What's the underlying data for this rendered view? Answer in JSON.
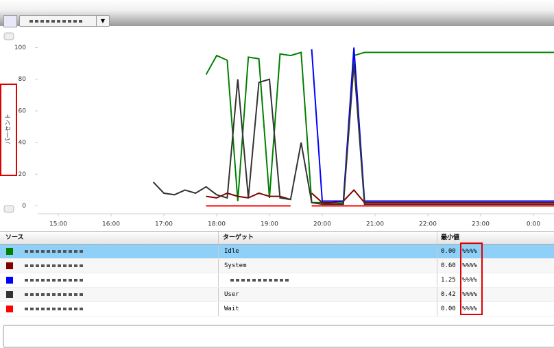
{
  "chart_data": {
    "type": "line",
    "y_label": "パーセント",
    "x": [
      16.6,
      16.8,
      17.0,
      17.2,
      17.4,
      17.6,
      17.8,
      18.0,
      18.2,
      18.4,
      18.6,
      18.8,
      19.0,
      19.2,
      19.4,
      19.6,
      19.8,
      20.0,
      20.2,
      20.4,
      20.6,
      20.8,
      21.0,
      21.2,
      21.4,
      21.6,
      21.8,
      22.0,
      22.2,
      22.4,
      22.6,
      22.8,
      23.0,
      23.2,
      23.4,
      23.6,
      23.8,
      24.0,
      24.2,
      24.4
    ],
    "xlim": [
      14.61,
      24.39
    ],
    "xticks": [
      {
        "value": 15,
        "label": "15:00"
      },
      {
        "value": 16,
        "label": "16:00"
      },
      {
        "value": 17,
        "label": "17:00"
      },
      {
        "value": 18,
        "label": "18:00"
      },
      {
        "value": 19,
        "label": "19:00"
      },
      {
        "value": 20,
        "label": "20:00"
      },
      {
        "value": 21,
        "label": "21:00"
      },
      {
        "value": 22,
        "label": "22:00"
      },
      {
        "value": 23,
        "label": "23:00"
      },
      {
        "value": 24,
        "label": "0:00"
      }
    ],
    "ylim": [
      -5,
      105
    ],
    "yticks": [
      0,
      20,
      40,
      60,
      80,
      100
    ],
    "grid": false,
    "series": [
      {
        "name": "Idle",
        "color": "#008000",
        "values": [
          null,
          null,
          null,
          null,
          null,
          null,
          83,
          95,
          92,
          3,
          94,
          93,
          5,
          96,
          95,
          97,
          2,
          2,
          1,
          2,
          95,
          97,
          97,
          97,
          97,
          97,
          97,
          97,
          97,
          97,
          97,
          97,
          97,
          97,
          97,
          97,
          97,
          97,
          97,
          97
        ]
      },
      {
        "name": "System",
        "color": "#800000",
        "values": [
          null,
          null,
          null,
          null,
          null,
          null,
          6,
          5,
          8,
          6,
          5,
          8,
          6,
          6,
          4,
          null,
          8,
          2,
          2,
          3,
          10,
          2,
          2,
          2,
          2,
          2,
          2,
          2,
          2,
          2,
          2,
          2,
          2,
          2,
          2,
          2,
          2,
          2,
          2,
          2
        ]
      },
      {
        "color": "#0000ff",
        "values": [
          null,
          null,
          null,
          null,
          null,
          null,
          null,
          null,
          null,
          null,
          null,
          null,
          null,
          null,
          null,
          null,
          99,
          3,
          3,
          3,
          100,
          3,
          3,
          3,
          3,
          3,
          3,
          3,
          3,
          3,
          3,
          3,
          3,
          3,
          3,
          3,
          3,
          3,
          3,
          3
        ]
      },
      {
        "name": "User",
        "color": "#333333",
        "values": [
          null,
          15,
          8,
          7,
          10,
          8,
          12,
          7,
          5,
          80,
          5,
          78,
          80,
          5,
          4,
          40,
          2,
          1,
          1,
          1,
          90,
          1,
          1,
          1,
          1,
          1,
          1,
          1,
          1,
          1,
          1,
          1,
          1,
          1,
          1,
          1,
          1,
          1,
          1,
          1
        ]
      },
      {
        "name": "Wait",
        "color": "#ff0000",
        "values": [
          null,
          null,
          null,
          null,
          null,
          null,
          0,
          0,
          0,
          0,
          0,
          0,
          0,
          0,
          0,
          null,
          0,
          0,
          0,
          0,
          0,
          0,
          0,
          0,
          0,
          0,
          0,
          0,
          0,
          0,
          0,
          0,
          0,
          0,
          0,
          0,
          0,
          0,
          0,
          0
        ]
      }
    ]
  },
  "table": {
    "headers": [
      "ソース",
      "ターゲット",
      "最小値"
    ],
    "rows": [
      {
        "min": "0.00",
        "unit": "%%%%"
      },
      {
        "min": "0.60",
        "unit": "%%%%"
      },
      {
        "min": "1.25",
        "unit": "%%%%"
      },
      {
        "min": "0.42",
        "unit": "%%%%"
      },
      {
        "min": "0.00",
        "unit": "%%%%"
      }
    ]
  }
}
